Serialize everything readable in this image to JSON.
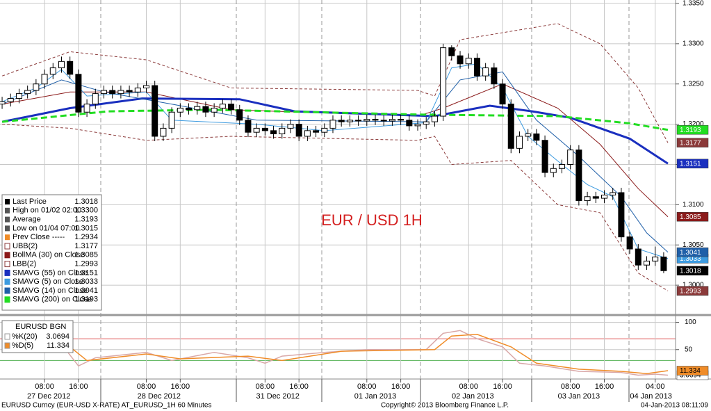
{
  "chart_data": [
    {
      "type": "candlestick",
      "title": "EUR / USD 1H",
      "x": [
        0,
        2,
        4,
        6,
        8,
        10,
        12,
        14,
        16,
        18,
        20,
        22,
        24,
        26,
        28,
        30,
        32,
        34,
        36,
        38,
        40,
        42,
        44,
        46,
        48,
        50,
        52,
        54,
        56,
        58,
        60,
        62,
        64,
        66,
        68,
        70,
        72,
        74,
        76,
        78,
        80,
        82,
        84,
        86,
        88,
        90,
        92,
        94,
        96,
        98,
        100,
        102,
        104,
        106,
        108,
        110,
        112,
        114,
        116,
        118,
        120,
        122,
        124,
        126,
        128,
        130,
        132,
        134,
        136,
        138,
        140,
        142,
        144,
        146,
        148,
        150,
        152,
        154,
        156
      ],
      "open": [
        1.3225,
        1.3228,
        1.3232,
        1.3238,
        1.3242,
        1.325,
        1.3262,
        1.327,
        1.3278,
        1.3262,
        1.3215,
        1.3225,
        1.3238,
        1.3242,
        1.3238,
        1.3242,
        1.324,
        1.3245,
        1.3248,
        1.3185,
        1.3195,
        1.3215,
        1.322,
        1.3218,
        1.3222,
        1.3215,
        1.322,
        1.3225,
        1.3218,
        1.3205,
        1.319,
        1.3195,
        1.3192,
        1.3188,
        1.3195,
        1.32,
        1.3185,
        1.3192,
        1.319,
        1.3195,
        1.3205,
        1.3203,
        1.3205,
        1.3204,
        1.3206,
        1.3205,
        1.3204,
        1.3206,
        1.3205,
        1.3198,
        1.32,
        1.3203,
        1.321,
        1.3295,
        1.3285,
        1.3275,
        1.3282,
        1.326,
        1.327,
        1.325,
        1.3225,
        1.317,
        1.3185,
        1.3188,
        1.318,
        1.314,
        1.3145,
        1.315,
        1.3168,
        1.3105,
        1.311,
        1.3108,
        1.3112,
        1.3115,
        1.306,
        1.3045,
        1.3025,
        1.303,
        1.3035
      ],
      "high": [
        1.3234,
        1.3238,
        1.3244,
        1.3248,
        1.3256,
        1.3268,
        1.3276,
        1.3284,
        1.3284,
        1.3268,
        1.3231,
        1.3244,
        1.3248,
        1.3248,
        1.3248,
        1.3248,
        1.3251,
        1.3254,
        1.3254,
        1.3201,
        1.3221,
        1.3226,
        1.3226,
        1.3228,
        1.3228,
        1.3226,
        1.3231,
        1.3231,
        1.3224,
        1.3211,
        1.3201,
        1.3201,
        1.3198,
        1.3201,
        1.3206,
        1.3206,
        1.3198,
        1.3198,
        1.3201,
        1.3211,
        1.3211,
        1.3211,
        1.3211,
        1.3212,
        1.3212,
        1.3211,
        1.3212,
        1.3212,
        1.3211,
        1.3206,
        1.3209,
        1.3216,
        1.33,
        1.3298,
        1.3291,
        1.3288,
        1.3288,
        1.3276,
        1.3276,
        1.3256,
        1.3231,
        1.3191,
        1.3194,
        1.3194,
        1.3186,
        1.3151,
        1.3156,
        1.3174,
        1.3174,
        1.3116,
        1.3116,
        1.3118,
        1.3121,
        1.3121,
        1.3066,
        1.3051,
        1.3036,
        1.3048,
        1.3041
      ],
      "low": [
        1.3219,
        1.3222,
        1.3226,
        1.3232,
        1.3236,
        1.3244,
        1.3256,
        1.3264,
        1.3256,
        1.3209,
        1.3209,
        1.3219,
        1.3232,
        1.3232,
        1.3232,
        1.3234,
        1.3234,
        1.3239,
        1.3179,
        1.3179,
        1.3189,
        1.3209,
        1.3212,
        1.3212,
        1.3209,
        1.3209,
        1.3214,
        1.3212,
        1.3199,
        1.3184,
        1.3184,
        1.3186,
        1.3182,
        1.3182,
        1.3189,
        1.3179,
        1.3179,
        1.3184,
        1.3184,
        1.3189,
        1.3197,
        1.3197,
        1.3198,
        1.3198,
        1.3199,
        1.3198,
        1.3198,
        1.3199,
        1.3192,
        1.3192,
        1.3194,
        1.3197,
        1.3204,
        1.3279,
        1.3269,
        1.3269,
        1.3254,
        1.3254,
        1.3244,
        1.3219,
        1.3164,
        1.3164,
        1.3179,
        1.3174,
        1.3134,
        1.3134,
        1.3139,
        1.3144,
        1.3099,
        1.3099,
        1.3102,
        1.3102,
        1.3106,
        1.3054,
        1.3039,
        1.3019,
        1.3019,
        1.3024,
        1.3015
      ],
      "close": [
        1.3228,
        1.3232,
        1.3238,
        1.3242,
        1.325,
        1.3262,
        1.327,
        1.3278,
        1.3262,
        1.3215,
        1.3225,
        1.3238,
        1.3242,
        1.3238,
        1.3242,
        1.324,
        1.3245,
        1.3248,
        1.3185,
        1.3195,
        1.3215,
        1.322,
        1.3218,
        1.3222,
        1.3215,
        1.322,
        1.3225,
        1.3218,
        1.3205,
        1.319,
        1.3195,
        1.3192,
        1.3188,
        1.3195,
        1.32,
        1.3185,
        1.3192,
        1.319,
        1.3195,
        1.3205,
        1.3203,
        1.3205,
        1.3204,
        1.3206,
        1.3205,
        1.3204,
        1.3206,
        1.3205,
        1.3198,
        1.32,
        1.3203,
        1.321,
        1.3295,
        1.3285,
        1.3275,
        1.3282,
        1.326,
        1.327,
        1.325,
        1.3225,
        1.317,
        1.3185,
        1.3188,
        1.318,
        1.314,
        1.3145,
        1.315,
        1.3168,
        1.3105,
        1.311,
        1.3108,
        1.3112,
        1.3115,
        1.306,
        1.3045,
        1.3025,
        1.303,
        1.3035,
        1.3018
      ],
      "series": [
        {
          "name": "UBB(2)",
          "color": "#8b3a3a",
          "dash": true,
          "width": 1,
          "last": 1.3177,
          "x": [
            0,
            16,
            34,
            54,
            98,
            102,
            108,
            131,
            141,
            150,
            157
          ],
          "values": [
            1.326,
            1.329,
            1.328,
            1.3245,
            1.3242,
            1.3235,
            1.3305,
            1.3325,
            1.33,
            1.3245,
            1.3177
          ]
        },
        {
          "name": "BollMA (30) on Close",
          "color": "#8b1a1a",
          "dash": false,
          "width": 1,
          "last": 1.3085,
          "x": [
            0,
            16,
            34,
            54,
            98,
            104,
            118,
            131,
            141,
            150,
            157
          ],
          "values": [
            1.3225,
            1.324,
            1.324,
            1.3218,
            1.321,
            1.322,
            1.325,
            1.322,
            1.3175,
            1.312,
            1.3085
          ]
        },
        {
          "name": "LBB(2)",
          "color": "#8b3a3a",
          "dash": true,
          "width": 1,
          "last": 1.2993,
          "x": [
            0,
            16,
            34,
            54,
            98,
            102,
            106,
            120,
            131,
            141,
            150,
            157
          ],
          "values": [
            1.32,
            1.3195,
            1.318,
            1.3185,
            1.318,
            1.3185,
            1.315,
            1.3155,
            1.31,
            1.309,
            1.3015,
            1.2993
          ]
        },
        {
          "name": "SMAVG (55) on Close",
          "color": "#1a2fbf",
          "dash": false,
          "width": 3,
          "last": 1.3151,
          "x": [
            0,
            16,
            33,
            56,
            69,
            102,
            115,
            125,
            134,
            148,
            157
          ],
          "values": [
            1.3203,
            1.322,
            1.3232,
            1.3231,
            1.3216,
            1.321,
            1.3223,
            1.3216,
            1.3208,
            1.3182,
            1.3151
          ]
        },
        {
          "name": "SMAVG (5) on Close",
          "color": "#3d9be0",
          "dash": false,
          "width": 1,
          "last": 1.3033,
          "x": [
            0,
            8,
            14,
            20,
            34,
            40,
            60,
            76,
            100,
            106,
            112,
            118,
            124,
            132,
            138,
            144,
            150,
            157
          ],
          "values": [
            1.3228,
            1.3245,
            1.3268,
            1.3235,
            1.324,
            1.3205,
            1.32,
            1.3192,
            1.3202,
            1.327,
            1.3275,
            1.3245,
            1.3185,
            1.315,
            1.3125,
            1.311,
            1.3045,
            1.3033
          ]
        },
        {
          "name": "SMAVG (14) on Close",
          "color": "#1f5fa8",
          "dash": false,
          "width": 1,
          "last": 1.3041,
          "x": [
            0,
            14,
            24,
            40,
            60,
            100,
            108,
            118,
            126,
            136,
            146,
            152,
            157
          ],
          "values": [
            1.3225,
            1.3255,
            1.324,
            1.3225,
            1.3205,
            1.3203,
            1.3255,
            1.3265,
            1.3205,
            1.316,
            1.311,
            1.3065,
            1.3041
          ]
        },
        {
          "name": "SMAVG (200) on Close",
          "color": "#22dd22",
          "dash": true,
          "width": 3,
          "last": 1.3193,
          "x": [
            0,
            25,
            49,
            98,
            131,
            148,
            157
          ],
          "values": [
            1.3203,
            1.3216,
            1.3218,
            1.3212,
            1.321,
            1.3201,
            1.3193
          ]
        }
      ],
      "stats": [
        {
          "name": "Last Price",
          "value": 1.3018
        },
        {
          "name": "High on 01/02 02:00",
          "value": 1.33,
          "value_label": "1.3300"
        },
        {
          "name": "Average",
          "value": 1.3193
        },
        {
          "name": "Low on 01/04 07:00",
          "value": 1.3015
        },
        {
          "name": "Prev Close -----",
          "value": 1.2934
        }
      ],
      "xlim": [
        -0.5,
        158.8
      ],
      "xticks": [
        {
          "value": 10,
          "label": "08:00"
        },
        {
          "value": 18,
          "label": "16:00"
        },
        {
          "value": 34,
          "label": "08:00"
        },
        {
          "value": 42,
          "label": "16:00"
        },
        {
          "value": 62,
          "label": "08:00"
        },
        {
          "value": 70,
          "label": "16:00"
        },
        {
          "value": 86,
          "label": "08:00"
        },
        {
          "value": 94,
          "label": "16:00"
        },
        {
          "value": 110,
          "label": "08:00"
        },
        {
          "value": 118,
          "label": "16:00"
        },
        {
          "value": 134,
          "label": "08:00"
        },
        {
          "value": 142,
          "label": "16:00"
        },
        {
          "value": 154,
          "label": "04:00"
        }
      ],
      "date_labels": [
        {
          "value": 11,
          "label": "27 Dec 2012"
        },
        {
          "value": 37,
          "label": "28 Dec 2012"
        },
        {
          "value": 65,
          "label": "31 Dec 2012"
        },
        {
          "value": 88,
          "label": "01 Jan 2013"
        },
        {
          "value": 111,
          "label": "02 Jan 2013"
        },
        {
          "value": 136,
          "label": "03 Jan 2013"
        },
        {
          "value": 153,
          "label": "04 Jan 2013"
        }
      ],
      "ylim": [
        1.29638,
        1.33543
      ],
      "yticks": [
        {
          "value": 1.335,
          "label": "1.3350"
        },
        {
          "value": 1.33,
          "label": "1.3300"
        },
        {
          "value": 1.325,
          "label": "1.3250"
        },
        {
          "value": 1.32,
          "label": "1.3200"
        },
        {
          "value": 1.315,
          "label": "1.3150"
        },
        {
          "value": 1.31,
          "label": "1.3100"
        },
        {
          "value": 1.305,
          "label": "1.3050"
        },
        {
          "value": 1.3,
          "label": "1.3000"
        }
      ],
      "grid": true
    },
    {
      "type": "line",
      "title": "EURUSD BGN",
      "series": [
        {
          "name": "%K(20)",
          "color": "#d9a8a8",
          "last": 3.0694,
          "x": [
            0,
            14,
            18,
            22,
            34,
            40,
            50,
            58,
            62,
            66,
            76,
            86,
            100,
            104,
            108,
            112,
            118,
            122,
            128,
            136,
            146,
            150,
            154,
            157
          ],
          "values": [
            55,
            60,
            20,
            35,
            45,
            30,
            45,
            35,
            25,
            38,
            45,
            50,
            50,
            80,
            85,
            70,
            55,
            25,
            20,
            10,
            8,
            3,
            5,
            3.0694
          ]
        },
        {
          "name": "%D(5)",
          "color": "#f08c28",
          "last": 11.334,
          "x": [
            0,
            16,
            20,
            34,
            42,
            58,
            66,
            80,
            102,
            106,
            112,
            120,
            126,
            136,
            146,
            152,
            157
          ],
          "values": [
            50,
            55,
            30,
            42,
            33,
            38,
            30,
            47,
            50,
            75,
            78,
            55,
            25,
            14,
            10,
            6,
            11.334
          ]
        }
      ],
      "ylim": [
        -4,
        111
      ],
      "yticks": [
        100,
        50
      ],
      "reference_lines": [
        {
          "value": 70,
          "color": "#e06060"
        },
        {
          "value": 30,
          "color": "#50b050"
        }
      ]
    }
  ],
  "footer": {
    "left": "EURUSD Curncy (EUR-USD X-RATE) AT_EURUSD_1H 60 Minutes",
    "center": "Copyright© 2013 Bloomberg Finance L.P.",
    "right": "04-Jan-2013 08:11:09"
  }
}
